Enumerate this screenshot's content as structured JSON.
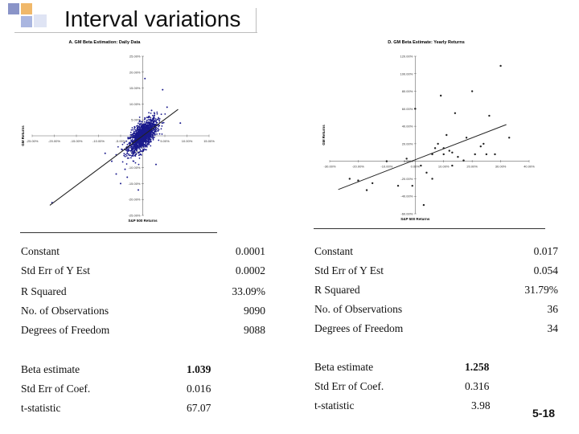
{
  "slide": {
    "title": "Interval variations",
    "number": "5-18"
  },
  "chart_data": [
    {
      "type": "scatter",
      "title": "A. GM Beta Estimation: Daily Data",
      "xlabel": "S&P 500 Returns",
      "ylabel": "GM Returns",
      "xlim": [
        -25,
        15
      ],
      "ylim": [
        -25,
        25
      ],
      "x_ticks": [
        "-25.00%",
        "-20.00%",
        "-15.00%",
        "-10.00%",
        "-5.00%",
        "0.00%",
        "5.00%",
        "10.00%",
        "15.00%"
      ],
      "y_ticks": [
        "25.00%",
        "20.00%",
        "15.00%",
        "10.00%",
        "5.00%",
        "0.00%",
        "-5.00%",
        "-10.00%",
        "-15.00%",
        "-20.00%",
        "-25.00%"
      ],
      "point_count": 9090,
      "outliers": [
        {
          "x": -20.5,
          "y": -21
        },
        {
          "x": -8.5,
          "y": -5.5
        },
        {
          "x": -7,
          "y": -8
        },
        {
          "x": -6,
          "y": -12
        },
        {
          "x": -5,
          "y": -15
        },
        {
          "x": -4,
          "y": -10.5
        },
        {
          "x": -3.5,
          "y": -13
        },
        {
          "x": 0.5,
          "y": 18
        },
        {
          "x": 2,
          "y": 8
        },
        {
          "x": 4.5,
          "y": 14.5
        },
        {
          "x": 5.5,
          "y": 9
        },
        {
          "x": 8.5,
          "y": 4
        },
        {
          "x": 3,
          "y": -9
        },
        {
          "x": -1,
          "y": -17
        }
      ],
      "regression": {
        "intercept": 0.0001,
        "slope": 1.039,
        "x_range": [
          -21,
          8
        ]
      },
      "color": "#1a1a8c",
      "grid": false
    },
    {
      "type": "scatter",
      "title": "D. GM Beta Estimate: Yearly Returns",
      "xlabel": "S&P 500 Returns",
      "ylabel": "GM Returns",
      "xlim": [
        -30,
        40
      ],
      "ylim": [
        -60,
        120
      ],
      "x_ticks": [
        "-30.00%",
        "-20.00%",
        "-10.00%",
        "0.00%",
        "10.00%",
        "20.00%",
        "30.00%",
        "40.00%"
      ],
      "y_ticks": [
        "120.00%",
        "100.00%",
        "80.00%",
        "60.00%",
        "40.00%",
        "20.00%",
        "0.00%",
        "-20.00%",
        "-40.00%",
        "-60.00%"
      ],
      "points": [
        {
          "x": -23,
          "y": -20
        },
        {
          "x": -20,
          "y": -22
        },
        {
          "x": -17,
          "y": -33
        },
        {
          "x": -15,
          "y": -25
        },
        {
          "x": -10,
          "y": 0
        },
        {
          "x": -6,
          "y": -28
        },
        {
          "x": -1,
          "y": -28
        },
        {
          "x": 0,
          "y": 60
        },
        {
          "x": 3,
          "y": -50
        },
        {
          "x": 4,
          "y": -13
        },
        {
          "x": 6,
          "y": 8
        },
        {
          "x": 6,
          "y": -20
        },
        {
          "x": 7,
          "y": 15
        },
        {
          "x": 8,
          "y": 20
        },
        {
          "x": 9,
          "y": 75
        },
        {
          "x": 10,
          "y": 15
        },
        {
          "x": 10,
          "y": 8
        },
        {
          "x": 11,
          "y": 30
        },
        {
          "x": 12,
          "y": 12
        },
        {
          "x": 13,
          "y": 10
        },
        {
          "x": 13,
          "y": -5
        },
        {
          "x": 14,
          "y": 55
        },
        {
          "x": 15,
          "y": 5
        },
        {
          "x": 17,
          "y": 1
        },
        {
          "x": 18,
          "y": 27
        },
        {
          "x": 20,
          "y": 80
        },
        {
          "x": 21,
          "y": 8
        },
        {
          "x": 23,
          "y": 17
        },
        {
          "x": 24,
          "y": 20
        },
        {
          "x": 25,
          "y": 8
        },
        {
          "x": 26,
          "y": 52
        },
        {
          "x": 28,
          "y": 8
        },
        {
          "x": 30,
          "y": 109
        },
        {
          "x": 33,
          "y": 27
        },
        {
          "x": -3,
          "y": 3
        },
        {
          "x": 2,
          "y": -5
        }
      ],
      "regression": {
        "intercept": 1.7,
        "slope": 1.258,
        "x_range": [
          -27,
          32
        ]
      },
      "color": "#222222",
      "grid": false
    }
  ],
  "stats_left": {
    "rows": [
      {
        "label": "Constant",
        "value": "0.0001"
      },
      {
        "label": "Std Err of Y Est",
        "value": "0.0002"
      },
      {
        "label": "R Squared",
        "value": "33.09%"
      },
      {
        "label": "No. of Observations",
        "value": "9090"
      },
      {
        "label": "Degrees of Freedom",
        "value": "9088"
      }
    ],
    "coef": [
      {
        "label": "Beta estimate",
        "value": "1.039"
      },
      {
        "label": "Std Err of Coef.",
        "value": "0.016"
      },
      {
        "label": "t-statistic",
        "value": "67.07"
      }
    ]
  },
  "stats_right": {
    "rows": [
      {
        "label": "Constant",
        "value": "0.017"
      },
      {
        "label": "Std Err of Y Est",
        "value": "0.054"
      },
      {
        "label": "R Squared",
        "value": "31.79%"
      },
      {
        "label": "No. of Observations",
        "value": "36"
      },
      {
        "label": "Degrees of Freedom",
        "value": "34"
      }
    ],
    "coef": [
      {
        "label": "Beta estimate",
        "value": "1.258"
      },
      {
        "label": "Std Err of Coef.",
        "value": "0.316"
      },
      {
        "label": "t-statistic",
        "value": "3.98"
      }
    ]
  }
}
